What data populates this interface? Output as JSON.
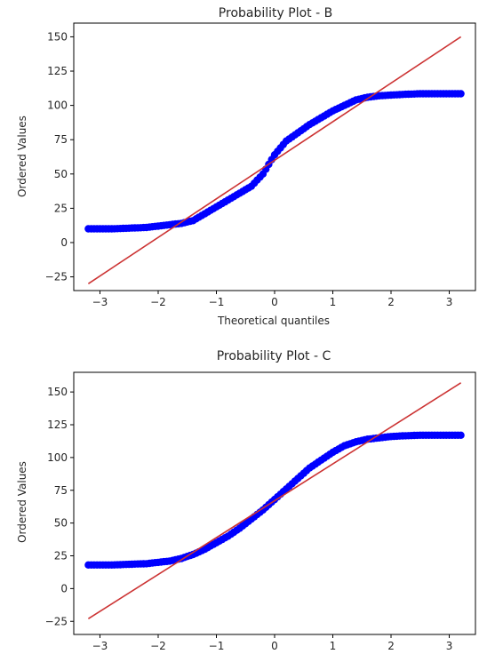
{
  "chart_data": [
    {
      "type": "scatter",
      "title": "Probability Plot - B",
      "xlabel": "Theoretical quantiles",
      "ylabel": "Ordered Values",
      "xlim": [
        -3.45,
        3.45
      ],
      "ylim": [
        -35,
        160
      ],
      "x_ticks": [
        -3,
        -2,
        -1,
        0,
        1,
        2,
        3
      ],
      "y_ticks": [
        -25,
        0,
        25,
        50,
        75,
        100,
        125,
        150
      ],
      "grid": false,
      "point_color": "#0000ff",
      "line_color": "#cc3333",
      "fit_line": {
        "x": [
          -3.2,
          3.2
        ],
        "y": [
          -30,
          150
        ]
      },
      "quantile_curve": {
        "x": [
          -3.2,
          -2.8,
          -2.5,
          -2.2,
          -2.0,
          -1.8,
          -1.6,
          -1.4,
          -1.2,
          -1.0,
          -0.8,
          -0.6,
          -0.4,
          -0.2,
          0.0,
          0.2,
          0.4,
          0.6,
          0.8,
          1.0,
          1.2,
          1.4,
          1.6,
          1.8,
          2.0,
          2.2,
          2.5,
          2.8,
          3.2
        ],
        "y": [
          10,
          10,
          10.5,
          11,
          12,
          13,
          14,
          16,
          21,
          26,
          31,
          36,
          41,
          50,
          64,
          74,
          80,
          86,
          91,
          96,
          100,
          104,
          106,
          107,
          107.5,
          108,
          108.5,
          108.5,
          108.5
        ]
      }
    },
    {
      "type": "scatter",
      "title": "Probability Plot - C",
      "xlabel": "",
      "ylabel": "Ordered Values",
      "xlim": [
        -3.45,
        3.45
      ],
      "ylim": [
        -35,
        165
      ],
      "x_ticks": [
        -3,
        -2,
        -1,
        0,
        1,
        2,
        3
      ],
      "y_ticks": [
        -25,
        0,
        25,
        50,
        75,
        100,
        125,
        150
      ],
      "grid": false,
      "point_color": "#0000ff",
      "line_color": "#cc3333",
      "fit_line": {
        "x": [
          -3.2,
          3.2
        ],
        "y": [
          -23,
          157
        ]
      },
      "quantile_curve": {
        "x": [
          -3.2,
          -2.8,
          -2.5,
          -2.2,
          -2.0,
          -1.8,
          -1.6,
          -1.4,
          -1.2,
          -1.0,
          -0.8,
          -0.6,
          -0.4,
          -0.2,
          0.0,
          0.2,
          0.4,
          0.6,
          0.8,
          1.0,
          1.2,
          1.4,
          1.6,
          1.8,
          2.0,
          2.2,
          2.5,
          2.8,
          3.2
        ],
        "y": [
          18,
          18,
          18.5,
          19,
          20,
          21,
          23,
          26,
          30,
          35,
          40,
          46,
          53,
          60,
          68,
          76,
          84,
          92,
          98,
          104,
          109,
          112,
          114,
          115,
          116,
          116.5,
          117,
          117,
          117
        ]
      }
    }
  ]
}
